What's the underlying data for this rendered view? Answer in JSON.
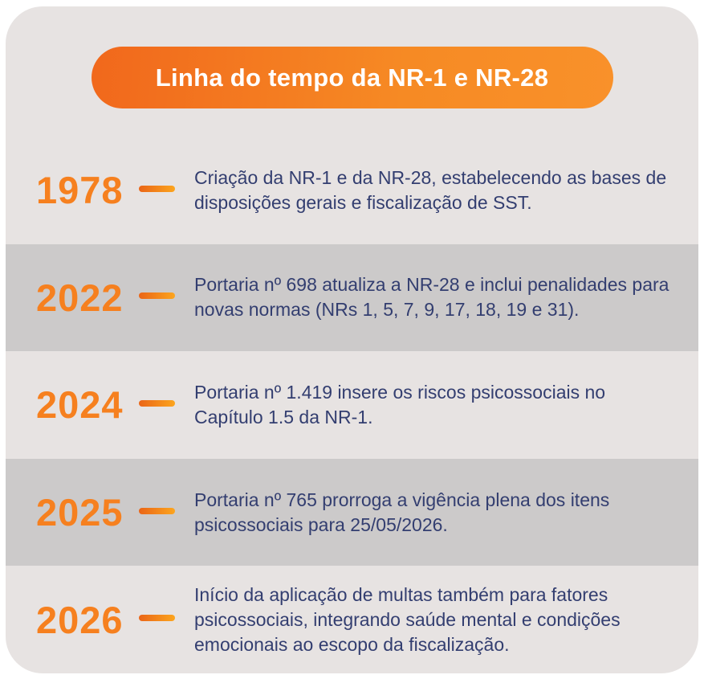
{
  "header": {
    "title": "Linha do tempo da NR-1 e NR-28"
  },
  "colors": {
    "card_background": "#E7E3E2",
    "band_dark": "#CCCACA",
    "accent_orange": "#F6801F",
    "pill_gradient_start": "#F1681C",
    "pill_gradient_end": "#F9912A",
    "dash_gradient_start": "#EA6517",
    "dash_gradient_end": "#FCA51E",
    "text_navy": "#333E70",
    "title_text": "#FFFFFF"
  },
  "timeline": {
    "items": [
      {
        "year": "1978",
        "description": "Criação da NR-1 e da NR-28, estabelecendo as bases de disposições gerais e fiscalização de SST.",
        "shade": "light"
      },
      {
        "year": "2022",
        "description": "Portaria nº 698 atualiza a NR-28 e inclui penalidades para novas normas (NRs 1, 5, 7, 9, 17, 18, 19 e 31).",
        "shade": "dark"
      },
      {
        "year": "2024",
        "description": "Portaria nº 1.419 insere os riscos psicossociais no Capítulo 1.5 da NR-1.",
        "shade": "light"
      },
      {
        "year": "2025",
        "description": "Portaria nº 765 prorroga a vigência plena dos itens psicossociais para 25/05/2026.",
        "shade": "dark"
      },
      {
        "year": "2026",
        "description": "Início da aplicação de multas também para fatores psicossociais, integrando saúde mental e condições emocionais ao escopo da fiscalização.",
        "shade": "light"
      }
    ]
  }
}
